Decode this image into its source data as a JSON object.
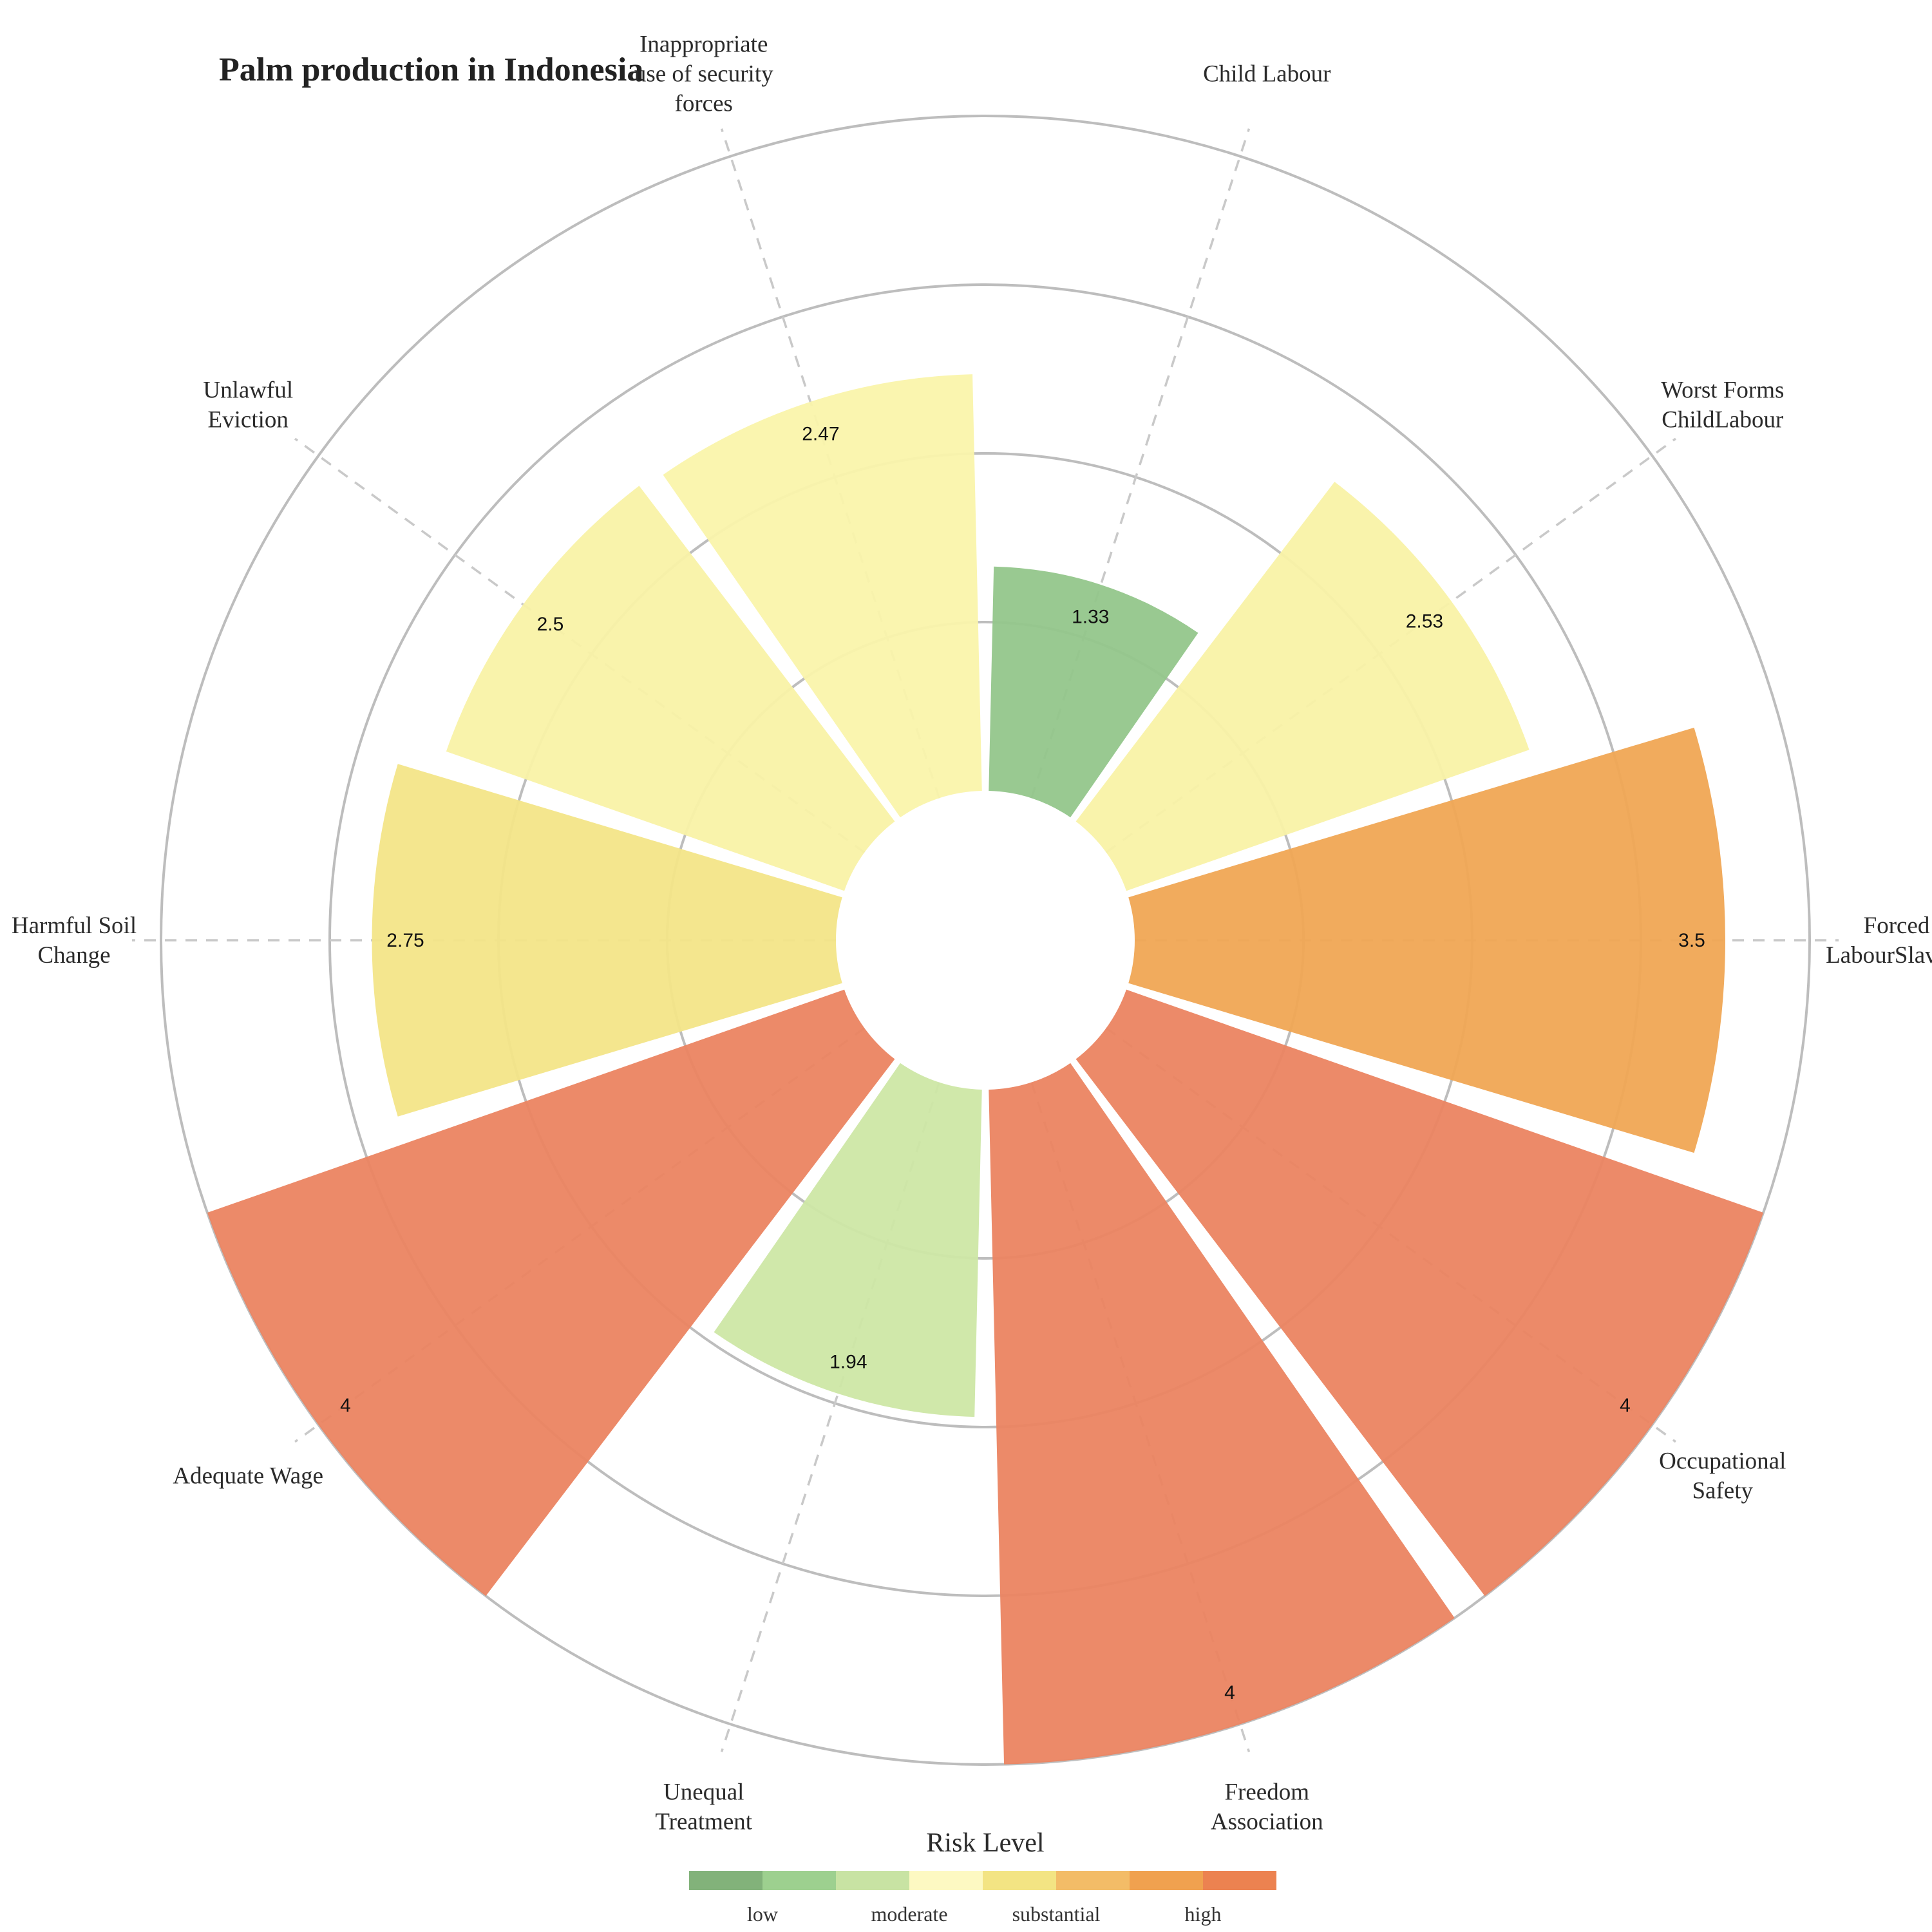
{
  "chart_data": {
    "type": "polar-bar",
    "title": "Palm production in Indonesia",
    "categories": [
      "Child Labour",
      "Worst Forms\nChildLabour",
      "Forced\nLabourSlavery",
      "Occupational\nSafety",
      "Freedom\nAssociation",
      "Unequal\nTreatment",
      "Adequate Wage",
      "Harmful Soil\nChange",
      "Unlawful\nEviction",
      "Inappropriate\nuse of security\nforces"
    ],
    "values": [
      1.33,
      2.53,
      3.5,
      4,
      4,
      1.94,
      4,
      2.75,
      2.5,
      2.47
    ],
    "value_labels": [
      "1.33",
      "2.53",
      "3.5",
      "4",
      "4",
      "1.94",
      "4",
      "2.75",
      "2.5",
      "2.47"
    ],
    "bar_colors": [
      "#93c68b",
      "#f9f2a7",
      "#f0a754",
      "#eb8461",
      "#eb8461",
      "#cde7a5",
      "#eb8461",
      "#f3e588",
      "#f9f2a7",
      "#faf4ab"
    ],
    "rlim": [
      0,
      4
    ],
    "legend": {
      "title": "Risk Level",
      "placement": "bottom",
      "colors": [
        "#82b27a",
        "#9dd08f",
        "#c8e3a3",
        "#fdf9c2",
        "#f3e483",
        "#f3bc67",
        "#f0a14f",
        "#ec8250"
      ],
      "labels": [
        "low",
        "moderate",
        "substantial",
        "high"
      ]
    }
  }
}
